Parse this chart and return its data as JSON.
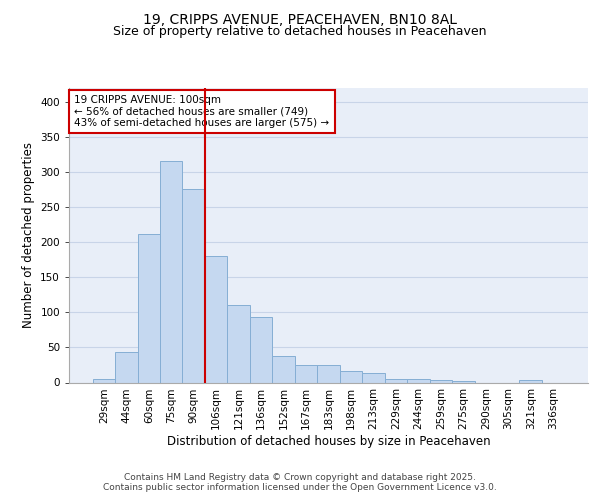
{
  "title_line1": "19, CRIPPS AVENUE, PEACEHAVEN, BN10 8AL",
  "title_line2": "Size of property relative to detached houses in Peacehaven",
  "xlabel": "Distribution of detached houses by size in Peacehaven",
  "ylabel": "Number of detached properties",
  "categories": [
    "29sqm",
    "44sqm",
    "60sqm",
    "75sqm",
    "90sqm",
    "106sqm",
    "121sqm",
    "136sqm",
    "152sqm",
    "167sqm",
    "183sqm",
    "198sqm",
    "213sqm",
    "229sqm",
    "244sqm",
    "259sqm",
    "275sqm",
    "290sqm",
    "305sqm",
    "321sqm",
    "336sqm"
  ],
  "values": [
    5,
    44,
    212,
    315,
    275,
    180,
    110,
    93,
    38,
    25,
    25,
    16,
    13,
    5,
    5,
    3,
    2,
    0,
    0,
    4,
    0
  ],
  "bar_color": "#c5d8f0",
  "bar_edge_color": "#85aed4",
  "ref_line_color": "#cc0000",
  "ref_line_x": 4.5,
  "annotation_text": "19 CRIPPS AVENUE: 100sqm\n← 56% of detached houses are smaller (749)\n43% of semi-detached houses are larger (575) →",
  "annotation_box_facecolor": "white",
  "annotation_box_edgecolor": "#cc0000",
  "ylim": [
    0,
    420
  ],
  "yticks": [
    0,
    50,
    100,
    150,
    200,
    250,
    300,
    350,
    400
  ],
  "grid_color": "#c8d4e8",
  "background_color": "#e8eef8",
  "footer_line1": "Contains HM Land Registry data © Crown copyright and database right 2025.",
  "footer_line2": "Contains public sector information licensed under the Open Government Licence v3.0.",
  "title_fontsize": 10,
  "subtitle_fontsize": 9,
  "axis_label_fontsize": 8.5,
  "tick_fontsize": 7.5,
  "annotation_fontsize": 7.5,
  "footer_fontsize": 6.5
}
